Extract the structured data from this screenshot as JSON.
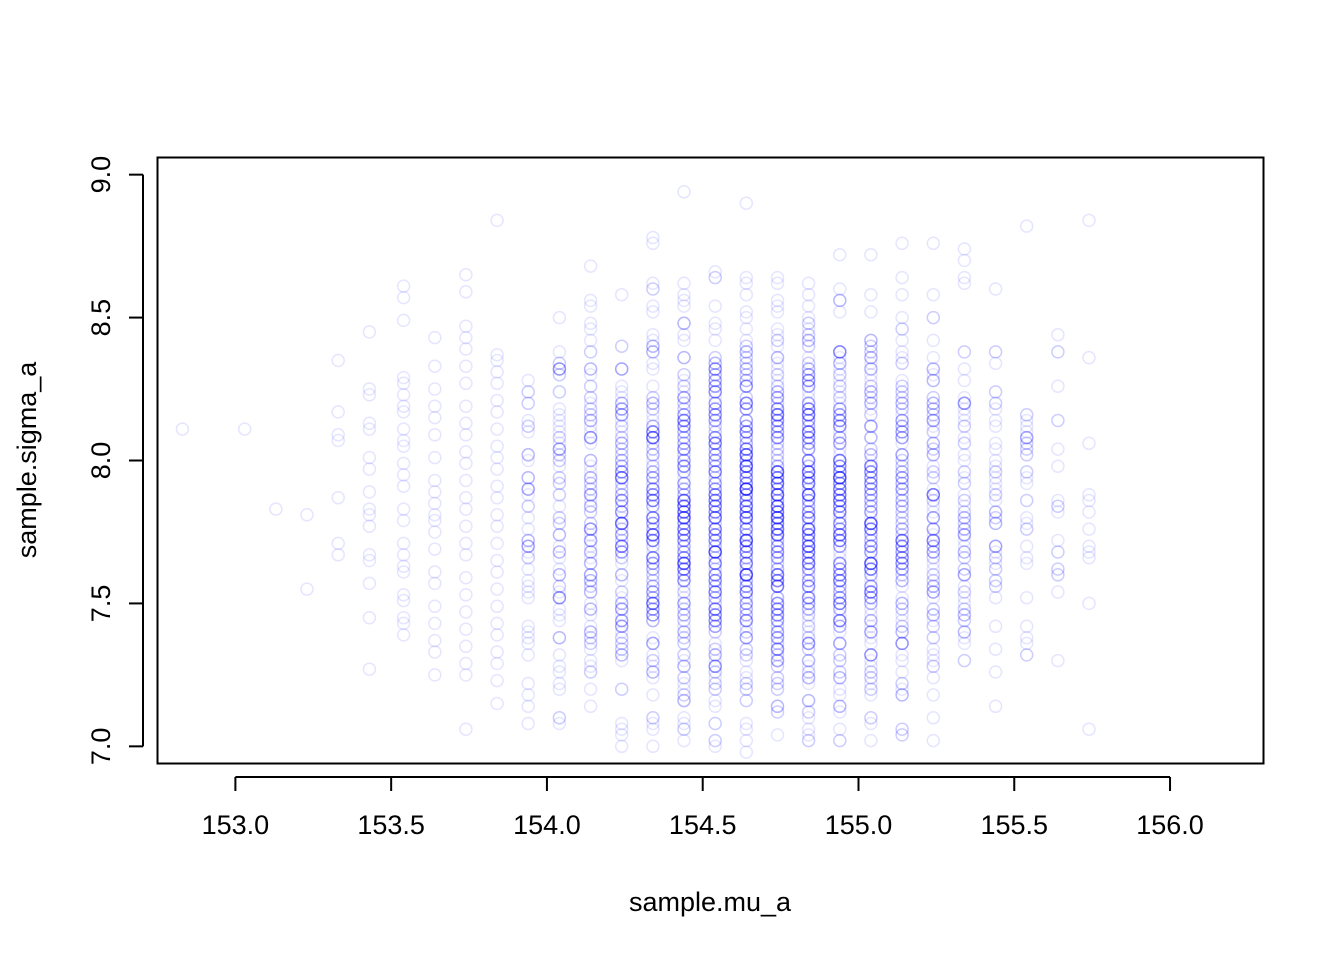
{
  "chart_data": {
    "type": "scatter",
    "xlabel": "sample.mu_a",
    "ylabel": "sample.sigma_a",
    "xlim": [
      152.75,
      156.3
    ],
    "ylim": [
      6.94,
      9.06
    ],
    "x_ticks": [
      "153.0",
      "153.5",
      "154.0",
      "154.5",
      "155.0",
      "155.5",
      "156.0"
    ],
    "y_ticks": [
      "7.0",
      "7.5",
      "8.0",
      "8.5",
      "9.0"
    ],
    "point_color": "#0000ff",
    "point_alpha": 0.1,
    "grid": false,
    "legend": "none",
    "x_grid_values": [
      152.8,
      153.0,
      153.1,
      153.2,
      153.3,
      153.4,
      153.5,
      153.6,
      153.7,
      153.8,
      153.9,
      154.0,
      154.1,
      154.2,
      154.3,
      154.4,
      154.5,
      154.6,
      154.7,
      154.8,
      154.9,
      155.0,
      155.1,
      155.2,
      155.3,
      155.4,
      155.5,
      155.6,
      155.7,
      155.8,
      155.9,
      156.0,
      156.1
    ],
    "column_samples": [
      {
        "x": 152.83,
        "y": [
          8.11
        ]
      },
      {
        "x": 153.03,
        "y": [
          8.11
        ]
      },
      {
        "x": 153.13,
        "y": [
          7.83
        ]
      },
      {
        "x": 153.23,
        "y": [
          7.81,
          7.55
        ]
      },
      {
        "x": 153.33,
        "y": [
          8.35,
          8.17,
          8.09,
          8.07,
          7.87,
          7.71,
          7.67
        ]
      },
      {
        "x": 153.43,
        "y": [
          8.45,
          8.25,
          8.23,
          8.13,
          8.11,
          8.01,
          7.97,
          7.89,
          7.83,
          7.81,
          7.77,
          7.67,
          7.65,
          7.57,
          7.45,
          7.27
        ]
      },
      {
        "x": 153.54,
        "y": [
          8.61,
          8.57,
          8.49,
          8.29,
          8.27,
          8.23,
          8.19,
          8.17,
          8.11,
          8.07,
          8.05,
          7.99,
          7.95,
          7.91,
          7.83,
          7.79,
          7.71,
          7.67,
          7.63,
          7.61,
          7.53,
          7.51,
          7.45,
          7.43,
          7.39
        ]
      },
      {
        "x": 153.64,
        "y": [
          8.43,
          8.33,
          8.25,
          8.19,
          8.15,
          8.09,
          8.01,
          7.93,
          7.89,
          7.85,
          7.81,
          7.79,
          7.75,
          7.69,
          7.61,
          7.57,
          7.49,
          7.43,
          7.37,
          7.33,
          7.25
        ]
      },
      {
        "x": 153.74,
        "y": [
          8.65,
          8.59,
          8.47,
          8.43,
          8.39,
          8.33,
          8.27,
          8.19,
          8.13,
          8.09,
          8.03,
          7.99,
          7.93,
          7.87,
          7.83,
          7.77,
          7.71,
          7.67,
          7.59,
          7.53,
          7.47,
          7.41,
          7.35,
          7.29,
          7.25,
          7.06
        ]
      },
      {
        "x": 153.84,
        "y": [
          8.84,
          8.37,
          8.35,
          8.31,
          8.27,
          8.21,
          8.17,
          8.11,
          8.05,
          8.01,
          7.97,
          7.91,
          7.87,
          7.81,
          7.77,
          7.71,
          7.65,
          7.61,
          7.55,
          7.49,
          7.43,
          7.39,
          7.33,
          7.29,
          7.23,
          7.15
        ]
      }
    ],
    "dense_range": {
      "x_from": 153.74,
      "x_to": 155.86,
      "y_center": 7.8,
      "y_spread": 0.35
    },
    "annotations": []
  }
}
